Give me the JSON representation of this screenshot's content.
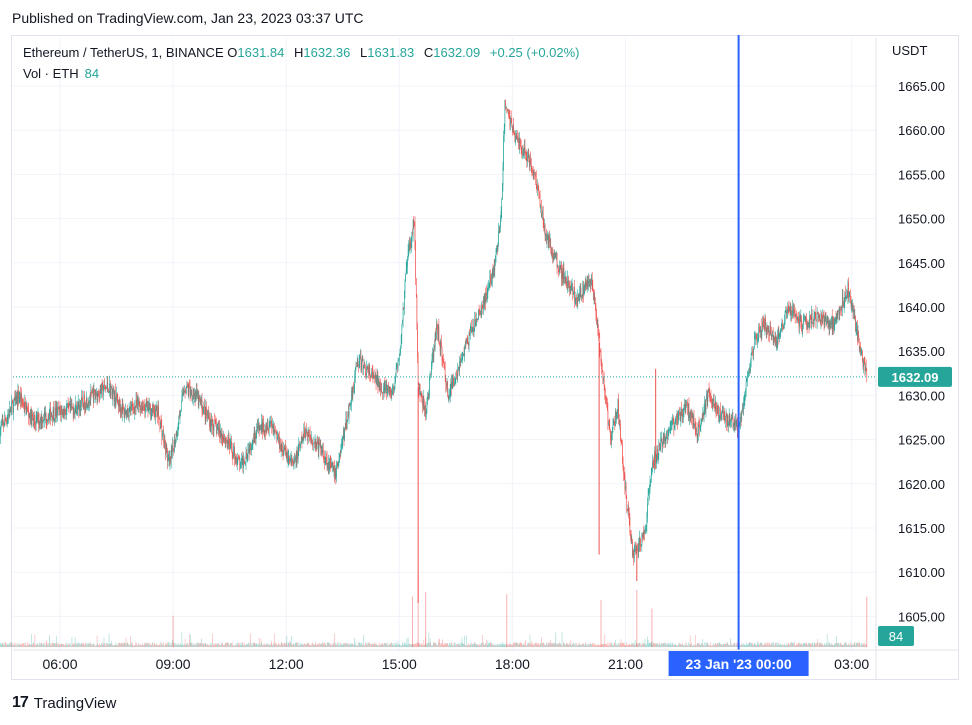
{
  "header": {
    "published": "Published on TradingView.com, Jan 23, 2023 03:37 UTC"
  },
  "legend": {
    "symbol": "Ethereum / TetherUS, 1, BINANCE",
    "open_label": "O",
    "open": "1631.84",
    "high_label": "H",
    "high": "1632.36",
    "low_label": "L",
    "low": "1631.83",
    "close_label": "C",
    "close": "1632.09",
    "change": "+0.25 (+0.02%)",
    "volume_label": "Vol · ETH",
    "volume": "84"
  },
  "footer": {
    "brand": "TradingView",
    "logo": "17"
  },
  "colors": {
    "up": "#26a69a",
    "down": "#ef5350",
    "crosshair": "#2962ff",
    "price_tag": "#26a69a"
  },
  "chart_data": {
    "type": "candlestick",
    "currency_label": "USDT",
    "y_ticks": [
      "1665.00",
      "1660.00",
      "1655.00",
      "1650.00",
      "1645.00",
      "1640.00",
      "1635.00",
      "1630.00",
      "1625.00",
      "1620.00",
      "1615.00",
      "1610.00",
      "1605.00"
    ],
    "ylim": [
      1601.2,
      1668.4
    ],
    "x_ticks": [
      "06:00",
      "09:00",
      "12:00",
      "15:00",
      "18:00",
      "21:00",
      "",
      "03:00"
    ],
    "x_tick_hours": [
      6,
      9,
      12,
      15,
      18,
      21,
      24,
      27
    ],
    "xlim_hours": [
      4.35,
      27.75
    ],
    "crosshair_label": "23 Jan '23   00:00",
    "crosshair_hour": 24,
    "last_price": "1632.09",
    "last_volume": "84",
    "price_path": [
      [
        4.4,
        1626
      ],
      [
        4.9,
        1630
      ],
      [
        5.3,
        1627
      ],
      [
        5.8,
        1628
      ],
      [
        6.4,
        1628.5
      ],
      [
        6.9,
        1630
      ],
      [
        7.3,
        1631
      ],
      [
        7.7,
        1628
      ],
      [
        8.1,
        1629
      ],
      [
        8.6,
        1628
      ],
      [
        8.9,
        1622
      ],
      [
        9.1,
        1626
      ],
      [
        9.3,
        1631
      ],
      [
        9.6,
        1630
      ],
      [
        10.0,
        1627
      ],
      [
        10.4,
        1625
      ],
      [
        10.8,
        1622
      ],
      [
        11.2,
        1626
      ],
      [
        11.6,
        1627
      ],
      [
        11.9,
        1624
      ],
      [
        12.2,
        1622
      ],
      [
        12.5,
        1626
      ],
      [
        12.9,
        1624
      ],
      [
        13.3,
        1621
      ],
      [
        13.6,
        1627
      ],
      [
        13.9,
        1634
      ],
      [
        14.3,
        1632
      ],
      [
        14.8,
        1630
      ],
      [
        15.0,
        1634
      ],
      [
        15.2,
        1645
      ],
      [
        15.4,
        1650
      ],
      [
        15.5,
        1631
      ],
      [
        15.7,
        1628
      ],
      [
        16.0,
        1638
      ],
      [
        16.3,
        1630
      ],
      [
        16.8,
        1636
      ],
      [
        17.2,
        1640
      ],
      [
        17.5,
        1644
      ],
      [
        17.7,
        1650
      ],
      [
        17.8,
        1663
      ],
      [
        18.1,
        1659
      ],
      [
        18.4,
        1657
      ],
      [
        18.6,
        1655
      ],
      [
        18.9,
        1648
      ],
      [
        19.3,
        1644
      ],
      [
        19.7,
        1641
      ],
      [
        20.1,
        1643
      ],
      [
        20.2,
        1640
      ],
      [
        20.4,
        1632
      ],
      [
        20.6,
        1625
      ],
      [
        20.8,
        1629
      ],
      [
        21.0,
        1619
      ],
      [
        21.2,
        1612
      ],
      [
        21.5,
        1614
      ],
      [
        21.7,
        1622
      ],
      [
        22.0,
        1625
      ],
      [
        22.3,
        1627
      ],
      [
        22.6,
        1629
      ],
      [
        22.9,
        1626
      ],
      [
        23.2,
        1630
      ],
      [
        23.5,
        1628
      ],
      [
        23.8,
        1627
      ],
      [
        24.0,
        1626
      ],
      [
        24.2,
        1631
      ],
      [
        24.4,
        1636
      ],
      [
        24.7,
        1638
      ],
      [
        25.0,
        1636
      ],
      [
        25.3,
        1640
      ],
      [
        25.7,
        1638
      ],
      [
        26.1,
        1639
      ],
      [
        26.5,
        1638
      ],
      [
        26.9,
        1642
      ],
      [
        27.1,
        1638
      ],
      [
        27.3,
        1634
      ],
      [
        27.4,
        1632
      ]
    ],
    "spikes": [
      {
        "hour": 15.5,
        "low": 1606.5
      },
      {
        "hour": 20.3,
        "low": 1612
      },
      {
        "hour": 21.3,
        "low": 1609
      },
      {
        "hour": 21.8,
        "high": 1633
      }
    ],
    "volume_peaks": [
      {
        "hour": 9.0,
        "value": 52
      },
      {
        "hour": 15.35,
        "value": 84
      },
      {
        "hour": 15.5,
        "value": 120
      },
      {
        "hour": 15.7,
        "value": 92
      },
      {
        "hour": 17.85,
        "value": 88
      },
      {
        "hour": 20.35,
        "value": 78
      },
      {
        "hour": 21.3,
        "value": 95
      },
      {
        "hour": 21.7,
        "value": 64
      },
      {
        "hour": 27.4,
        "value": 84
      }
    ]
  }
}
